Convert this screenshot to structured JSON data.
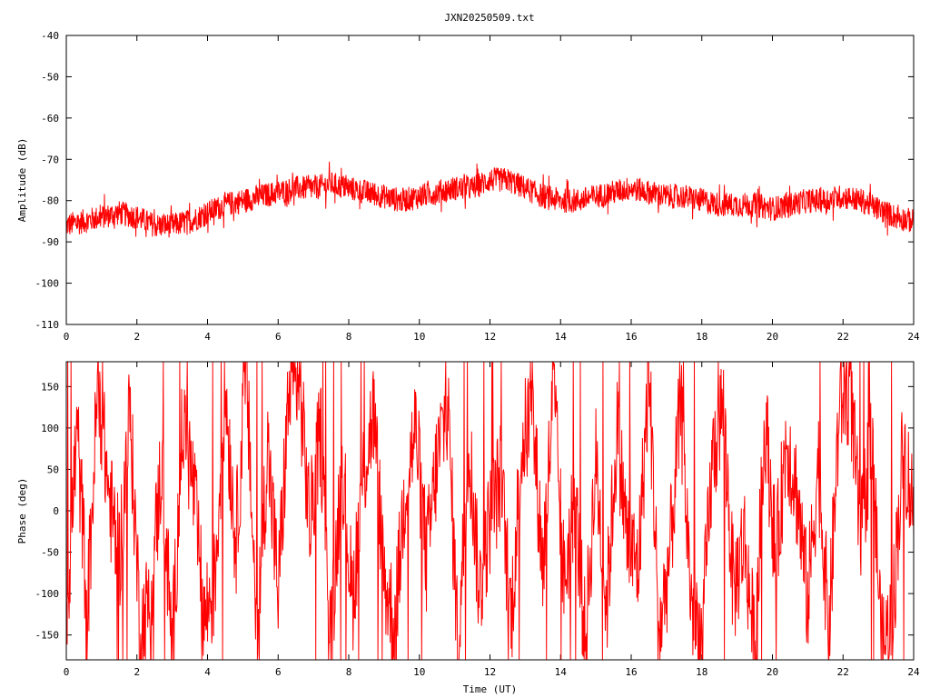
{
  "title": "JXN20250509.txt",
  "colors": {
    "series": "#ff0000",
    "axes": "#000000",
    "background": "#ffffff"
  },
  "chart_data": [
    {
      "type": "line",
      "panel": "top",
      "ylabel": "Amplitude (dB)",
      "xlabel": "",
      "xlim": [
        0,
        24
      ],
      "ylim": [
        -110,
        -40
      ],
      "x_ticks": [
        "0",
        "2",
        "4",
        "6",
        "8",
        "10",
        "12",
        "14",
        "16",
        "18",
        "20",
        "22",
        "24"
      ],
      "y_ticks": [
        "-40",
        "-50",
        "-60",
        "-70",
        "-80",
        "-90",
        "-100",
        "-110"
      ],
      "grid": false,
      "series": [
        {
          "x": [
            0,
            0.5,
            1,
            1.5,
            2,
            2.5,
            3,
            3.5,
            4,
            4.5,
            5,
            5.5,
            6,
            6.5,
            7,
            7.5,
            8,
            8.5,
            9,
            9.5,
            10,
            10.5,
            11,
            11.5,
            12,
            12.5,
            13,
            13.5,
            14,
            14.5,
            15,
            15.5,
            16,
            16.5,
            17,
            17.5,
            18,
            18.5,
            19,
            19.5,
            20,
            20.5,
            21,
            21.5,
            22,
            22.5,
            23,
            23.5,
            24
          ],
          "y": [
            -86,
            -85,
            -84,
            -83,
            -84,
            -86,
            -86,
            -85,
            -83,
            -81,
            -80,
            -79,
            -78,
            -77,
            -77,
            -76,
            -77,
            -78,
            -79,
            -80,
            -79,
            -78,
            -77,
            -77,
            -75,
            -75,
            -77,
            -79,
            -80,
            -80,
            -79,
            -78,
            -77,
            -78,
            -79,
            -79,
            -80,
            -81,
            -81,
            -81,
            -82,
            -81,
            -80,
            -80,
            -79,
            -80,
            -82,
            -84,
            -85
          ],
          "band": [
            3,
            3,
            3,
            3,
            3,
            3,
            3,
            3,
            3,
            3,
            3,
            3,
            3,
            3,
            3,
            3,
            3,
            3,
            3,
            3,
            3,
            3,
            3,
            3,
            3,
            3,
            3,
            3,
            3,
            3,
            3,
            3,
            3,
            3,
            3,
            3,
            3,
            3,
            3,
            3,
            3,
            3,
            3,
            3,
            3,
            3,
            3,
            3,
            3
          ]
        }
      ]
    },
    {
      "type": "line",
      "panel": "bottom",
      "ylabel": "Phase (deg)",
      "xlabel": "Time (UT)",
      "xlim": [
        0,
        24
      ],
      "ylim": [
        -180,
        180
      ],
      "x_ticks": [
        "0",
        "2",
        "4",
        "6",
        "8",
        "10",
        "12",
        "14",
        "16",
        "18",
        "20",
        "22",
        "24"
      ],
      "y_ticks": [
        "150",
        "100",
        "50",
        "0",
        "-50",
        "-100",
        "-150"
      ],
      "y_tick_values": [
        150,
        100,
        50,
        0,
        -50,
        -100,
        -150
      ],
      "grid": false,
      "series": [
        {
          "x": [
            0,
            0.3,
            0.6,
            0.9,
            1.2,
            1.5,
            1.8,
            2.1,
            2.4,
            2.7,
            3.0,
            3.3,
            3.6,
            3.9,
            4.2,
            4.5,
            4.8,
            5.1,
            5.4,
            5.7,
            6.0,
            6.3,
            6.6,
            6.9,
            7.2,
            7.5,
            7.8,
            8.1,
            8.4,
            8.7,
            9.0,
            9.3,
            9.6,
            9.9,
            10.2,
            10.5,
            10.8,
            11.1,
            11.4,
            11.7,
            12.0,
            12.3,
            12.6,
            12.9,
            13.2,
            13.5,
            13.8,
            14.1,
            14.4,
            14.7,
            15.0,
            15.3,
            15.6,
            15.9,
            16.2,
            16.5,
            16.8,
            17.1,
            17.4,
            17.7,
            18.0,
            18.3,
            18.6,
            18.9,
            19.2,
            19.5,
            19.8,
            20.1,
            20.4,
            20.7,
            21.0,
            21.3,
            21.6,
            21.9,
            22.2,
            22.5,
            22.8,
            23.1,
            23.4,
            23.7,
            24.0
          ],
          "y": [
            -140,
            100,
            -120,
            160,
            20,
            -60,
            120,
            -150,
            -100,
            60,
            -170,
            110,
            30,
            -130,
            -90,
            150,
            -40,
            170,
            -160,
            80,
            -100,
            140,
            160,
            -20,
            100,
            -170,
            70,
            -110,
            40,
            120,
            -80,
            -140,
            30,
            100,
            -60,
            60,
            130,
            -170,
            90,
            -100,
            -10,
            40,
            -130,
            80,
            120,
            -70,
            150,
            -90,
            20,
            -160,
            60,
            -120,
            100,
            -40,
            -70,
            170,
            -150,
            -50,
            130,
            -110,
            -160,
            60,
            130,
            -100,
            -30,
            -170,
            110,
            -60,
            90,
            20,
            -110,
            60,
            -150,
            130,
            150,
            -40,
            100,
            -170,
            -130,
            80,
            0
          ],
          "spread": 70
        }
      ]
    }
  ]
}
